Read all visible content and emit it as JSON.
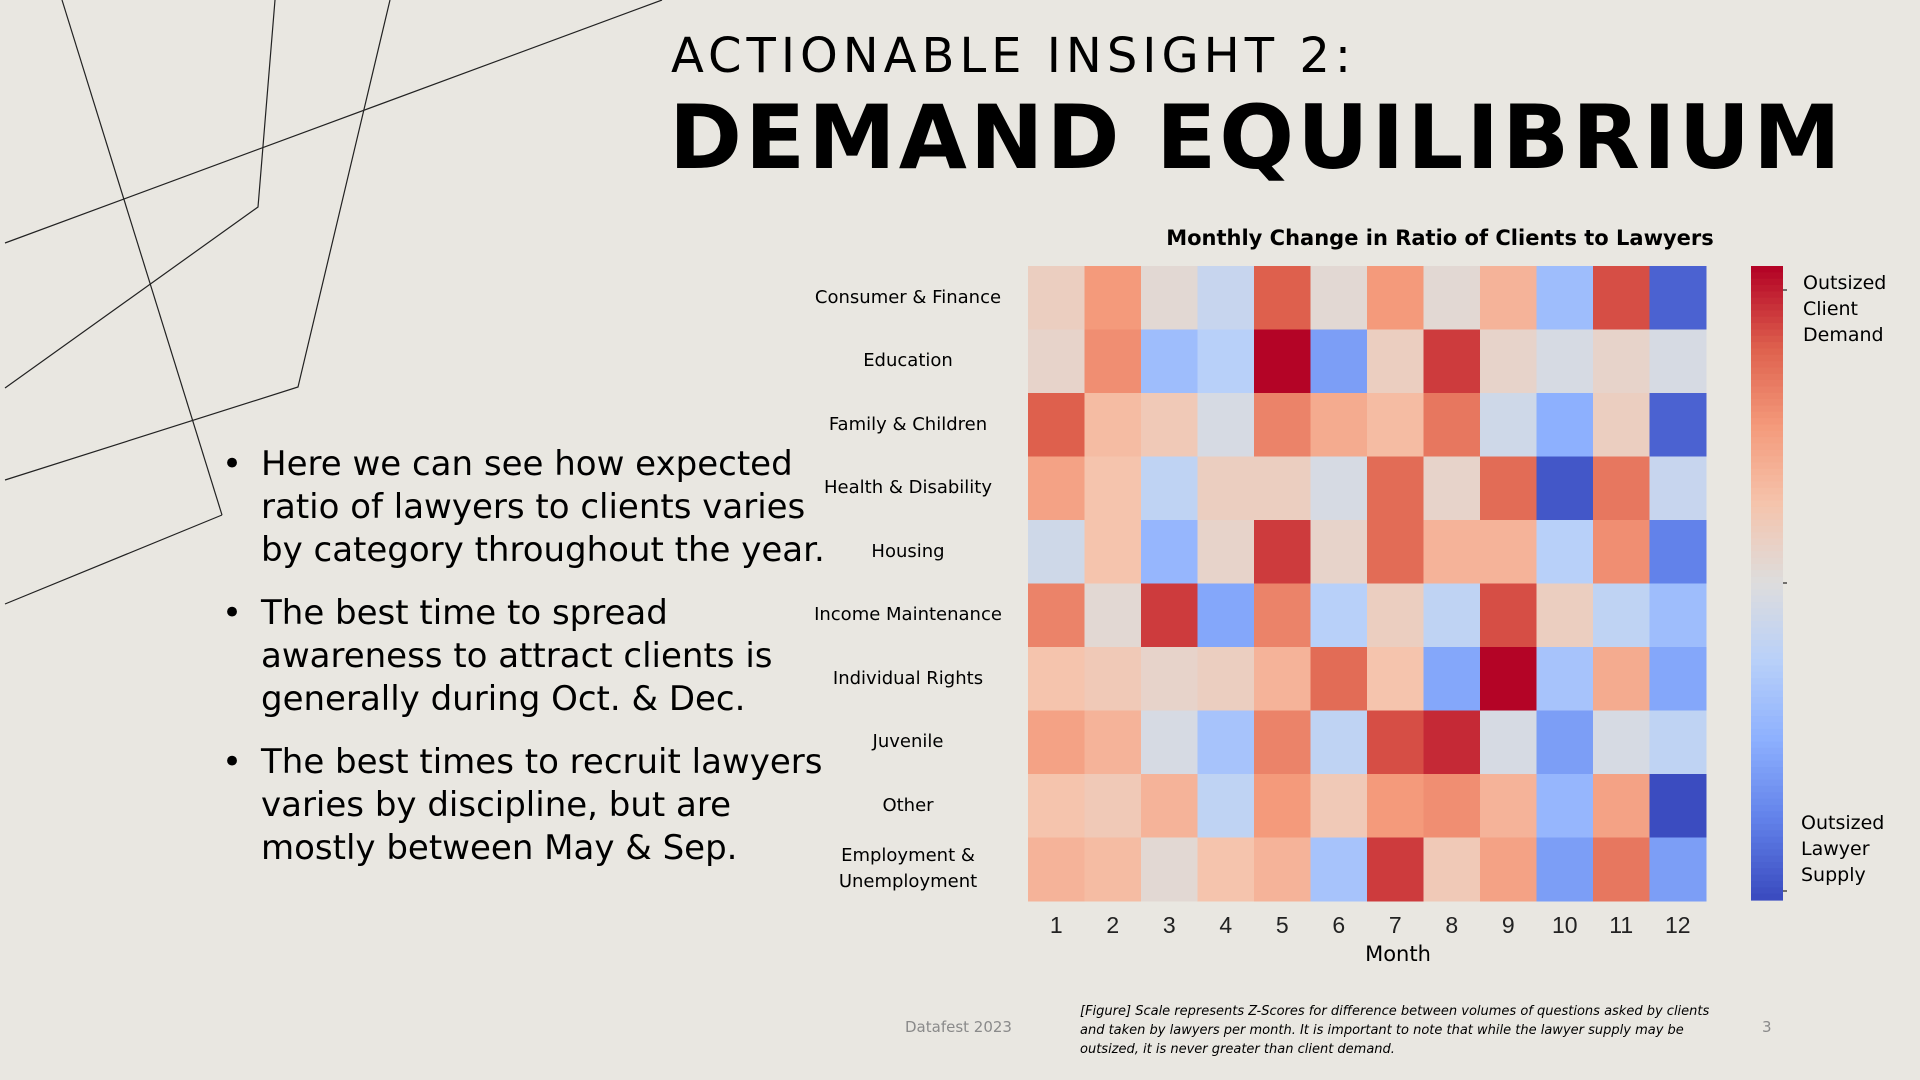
{
  "slide": {
    "title_small": "ACTIONABLE INSIGHT 2:",
    "title_big": "DEMAND EQUILIBRIUM",
    "bullets": [
      "Here we can see how expected ratio of lawyers to clients varies by category throughout the year.",
      "The best time to spread awareness to attract clients is generally during Oct. & Dec.",
      "The best times to recruit lawyers varies by discipline, but are mostly between May & Sep."
    ],
    "footer_left": "Datafest 2023",
    "caption": "[Figure] Scale represents Z-Scores for difference between volumes of questions asked by clients and taken by lawyers per month. It is important to note that while the lawyer supply may be outsized, it is never greater than client demand.",
    "page_number": "3"
  },
  "chart_data": {
    "type": "heatmap",
    "title": "Monthly Change in Ratio of Clients to Lawyers",
    "xlabel": "Month",
    "ylabel": "",
    "x": [
      "1",
      "2",
      "3",
      "4",
      "5",
      "6",
      "7",
      "8",
      "9",
      "10",
      "11",
      "12"
    ],
    "y": [
      "Consumer & Finance",
      "Education",
      "Family & Children",
      "Health & Disability",
      "Housing",
      "Income Maintenance",
      "Individual Rights",
      "Juvenile",
      "Other",
      "Employment & Unemployment"
    ],
    "y_display": [
      [
        "Consumer & Finance"
      ],
      [
        "Education"
      ],
      [
        "Family & Children"
      ],
      [
        "Health & Disability"
      ],
      [
        "Housing"
      ],
      [
        "Income Maintenance"
      ],
      [
        "Individual Rights"
      ],
      [
        "Juvenile"
      ],
      [
        "Other"
      ],
      [
        "Employment &",
        "Unemployment"
      ]
    ],
    "values": [
      [
        0.15,
        0.5,
        0.05,
        -0.15,
        0.75,
        0.05,
        0.5,
        0.05,
        0.35,
        -0.4,
        0.8,
        -0.9
      ],
      [
        0.1,
        0.55,
        -0.4,
        -0.25,
        1.0,
        -0.6,
        0.15,
        0.85,
        0.1,
        -0.05,
        0.1,
        -0.05
      ],
      [
        0.75,
        0.3,
        0.2,
        -0.05,
        0.6,
        0.4,
        0.3,
        0.65,
        -0.1,
        -0.5,
        0.15,
        -0.9
      ],
      [
        0.45,
        0.25,
        -0.2,
        0.15,
        0.15,
        -0.05,
        0.7,
        0.1,
        0.7,
        -0.95,
        0.65,
        -0.15
      ],
      [
        -0.1,
        0.25,
        -0.45,
        0.1,
        0.85,
        0.1,
        0.7,
        0.35,
        0.35,
        -0.25,
        0.55,
        -0.75
      ],
      [
        0.6,
        0.05,
        0.85,
        -0.55,
        0.6,
        -0.25,
        0.15,
        -0.2,
        0.8,
        0.15,
        -0.2,
        -0.4
      ],
      [
        0.25,
        0.2,
        0.1,
        0.15,
        0.35,
        0.7,
        0.25,
        -0.55,
        1.0,
        -0.35,
        0.4,
        -0.55
      ],
      [
        0.45,
        0.35,
        -0.05,
        -0.35,
        0.6,
        -0.2,
        0.8,
        0.9,
        -0.05,
        -0.6,
        -0.05,
        -0.2
      ],
      [
        0.25,
        0.2,
        0.35,
        -0.2,
        0.5,
        0.2,
        0.5,
        0.55,
        0.35,
        -0.45,
        0.45,
        -1.0
      ],
      [
        0.35,
        0.3,
        0.05,
        0.25,
        0.35,
        -0.35,
        0.85,
        0.2,
        0.45,
        -0.6,
        0.65,
        -0.6
      ]
    ],
    "vmin": -1,
    "vmax": 1,
    "colormap": "coolwarm",
    "colorbar_labels": {
      "top": [
        "Outsized",
        "Client",
        "Demand"
      ],
      "bottom": [
        "Outsized",
        "Lawyer",
        "Supply"
      ]
    }
  }
}
